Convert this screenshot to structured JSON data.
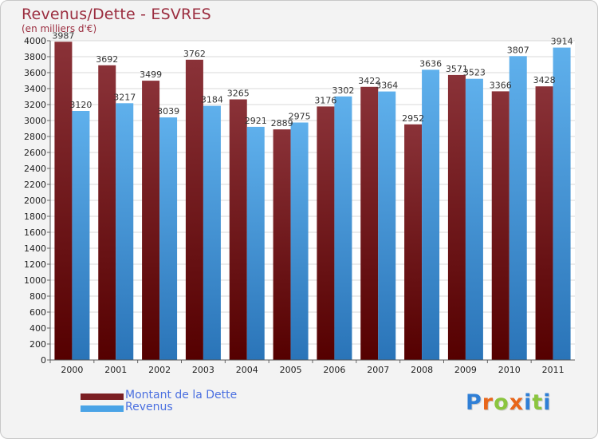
{
  "chart_data": {
    "type": "bar",
    "title": "Revenus/Dette - ESVRES",
    "subtitle": "(en milliers d'€)",
    "categories": [
      "2000",
      "2001",
      "2002",
      "2003",
      "2004",
      "2005",
      "2006",
      "2007",
      "2008",
      "2009",
      "2010",
      "2011"
    ],
    "series": [
      {
        "name": "Montant de la Dette",
        "color": "#7a1e22",
        "values": [
          3987,
          3692,
          3499,
          3762,
          3265,
          2889,
          3176,
          3422,
          2952,
          3571,
          3366,
          3428
        ]
      },
      {
        "name": "Revenus",
        "color": "#4aa3e6",
        "values": [
          3120,
          3217,
          3039,
          3184,
          2921,
          2975,
          3302,
          3364,
          3636,
          3523,
          3807,
          3914
        ]
      }
    ],
    "ylim": [
      0,
      4000
    ],
    "ytick_step": 200,
    "grid": true,
    "legend_position": "bottom-left"
  },
  "branding": {
    "logo_letters": [
      "P",
      "r",
      "o",
      "x",
      "i",
      "t",
      "i"
    ],
    "logo_colors": [
      "#2f7fd6",
      "#e8661a",
      "#8bc53f",
      "#e8661a",
      "#2f7fd6",
      "#8bc53f",
      "#2f7fd6"
    ]
  }
}
